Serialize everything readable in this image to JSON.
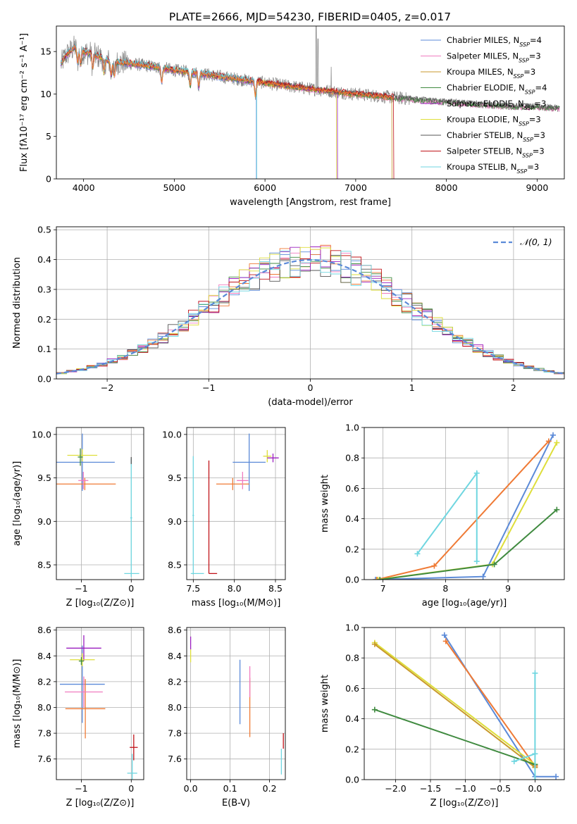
{
  "figure": {
    "title": "PLATE=2666, MJD=54230, FIBERID=0405, z=0.017"
  },
  "colors": {
    "chabrier_miles": "#5b8ad8",
    "salpeter_miles": "#f07cc0",
    "kroupa_miles": "#c99a2c",
    "chabrier_elodie": "#3f8a3f",
    "salpeter_elodie": "#9b1fbf",
    "kroupa_elodie": "#dede3a",
    "chabrier_stelib": "#555555",
    "salpeter_stelib": "#c0141a",
    "kroupa_stelib": "#6fd6e0",
    "orange": "#ef7a35",
    "gaussian": "#5b8ad8",
    "grid": "#b0b0b0"
  },
  "chart_data": [
    {
      "id": "spectrum",
      "type": "line",
      "xlabel": "wavelength [Angstrom, rest frame]",
      "ylabel": "Flux [fλ10⁻¹⁷ erg cm⁻² s⁻¹ A⁻¹]",
      "xlim": [
        3700,
        9300
      ],
      "ylim": [
        0,
        18
      ],
      "xticks": [
        "4000",
        "5000",
        "6000",
        "7000",
        "8000",
        "9000"
      ],
      "yticks": [
        "0",
        "5",
        "10",
        "15"
      ],
      "grid": false,
      "legend_position": "top-right",
      "legend": [
        {
          "name": "Chabrier MILES, N",
          "sub": "SSP",
          "tail": "=4",
          "color_key": "chabrier_miles"
        },
        {
          "name": "Salpeter MILES, N",
          "sub": "SSP",
          "tail": "=3",
          "color_key": "salpeter_miles"
        },
        {
          "name": "Kroupa MILES, N",
          "sub": "SSP",
          "tail": "=3",
          "color_key": "kroupa_miles"
        },
        {
          "name": "Chabrier ELODIE, N",
          "sub": "SSP",
          "tail": "=4",
          "color_key": "chabrier_elodie"
        },
        {
          "name": "Salpeter ELODIE, N",
          "sub": "SSP",
          "tail": "=3",
          "color_key": "salpeter_elodie"
        },
        {
          "name": "Kroupa ELODIE, N",
          "sub": "SSP",
          "tail": "=3",
          "color_key": "kroupa_elodie"
        },
        {
          "name": "Chabrier STELIB, N",
          "sub": "SSP",
          "tail": "=3",
          "color_key": "chabrier_stelib"
        },
        {
          "name": "Salpeter STELIB, N",
          "sub": "SSP",
          "tail": "=3",
          "color_key": "salpeter_stelib"
        },
        {
          "name": "Kroupa STELIB, N",
          "sub": "SSP",
          "tail": "=3",
          "color_key": "kroupa_stelib"
        }
      ],
      "continuum": [
        [
          3750,
          13.5
        ],
        [
          3800,
          14.5
        ],
        [
          3900,
          15.5
        ],
        [
          4000,
          15.0
        ],
        [
          4100,
          14.7
        ],
        [
          4300,
          13.8
        ],
        [
          4500,
          13.6
        ],
        [
          4800,
          13.2
        ],
        [
          5000,
          12.8
        ],
        [
          5300,
          12.4
        ],
        [
          5600,
          11.9
        ],
        [
          6000,
          11.3
        ],
        [
          6500,
          10.6
        ],
        [
          7000,
          10.0
        ],
        [
          7400,
          9.6
        ],
        [
          7800,
          9.2
        ],
        [
          8200,
          8.9
        ],
        [
          8600,
          8.6
        ],
        [
          8900,
          8.5
        ],
        [
          9100,
          8.4
        ],
        [
          9300,
          8.3
        ]
      ]
    },
    {
      "id": "residuals",
      "type": "histogram",
      "xlabel": "(data-model)/error",
      "ylabel": "Normed distribution",
      "xlim": [
        -2.5,
        2.5
      ],
      "ylim": [
        0,
        0.51
      ],
      "xticks": [
        "−2",
        "−1",
        "0",
        "1",
        "2"
      ],
      "yticks": [
        "0.0",
        "0.1",
        "0.2",
        "0.3",
        "0.4",
        "0.5"
      ],
      "grid": true,
      "legend_position": "top-right",
      "legend": [
        {
          "name": "𝒩(0, 1)",
          "color_key": "gaussian"
        }
      ],
      "gaussian": {
        "mean": 0,
        "sigma": 1
      }
    },
    {
      "id": "age_vs_Z",
      "type": "scatter",
      "xlabel": "Z [log₁₀(Z/Z⊙)]",
      "ylabel": "age  [log₁₀(age/yr)]",
      "xlim": [
        -1.5,
        0.25
      ],
      "ylim": [
        8.33,
        10.08
      ],
      "xticks": [
        "−1",
        "0"
      ],
      "yticks": [
        "8.5",
        "9.0",
        "9.5",
        "10.0"
      ],
      "grid": true,
      "points": [
        {
          "x": -0.98,
          "y": 9.68,
          "xerr": 0.65,
          "yerr": 0.33,
          "color_key": "chabrier_miles"
        },
        {
          "x": -0.93,
          "y": 9.43,
          "xerr": 0.62,
          "yerr": 0.07,
          "color_key": "orange"
        },
        {
          "x": -0.96,
          "y": 9.47,
          "xerr": 0.1,
          "yerr": 0.1,
          "color_key": "salpeter_miles"
        },
        {
          "x": -0.98,
          "y": 9.76,
          "xerr": 0.3,
          "yerr": 0.07,
          "color_key": "kroupa_elodie"
        },
        {
          "x": -1.02,
          "y": 9.74,
          "xerr": 0.05,
          "yerr": 0.1,
          "color_key": "chabrier_elodie"
        },
        {
          "x": 0.0,
          "y": 9.04,
          "xerr": 0.02,
          "yerr": 0.68,
          "color_key": "kroupa_stelib"
        },
        {
          "x": 0.01,
          "y": 8.4,
          "xerr": 0.15,
          "yerr": 0.0,
          "color_key": "kroupa_stelib"
        },
        {
          "x": 0.0,
          "y": 9.7,
          "xerr": 0.0,
          "yerr": 0.04,
          "color_key": "chabrier_stelib"
        }
      ]
    },
    {
      "id": "age_vs_mass",
      "type": "scatter",
      "xlabel": "mass [log₁₀(M/M⊙)]",
      "ylabel": "",
      "xlim": [
        7.42,
        8.62
      ],
      "ylim": [
        8.33,
        10.08
      ],
      "xticks": [
        "7.5",
        "8.0",
        "8.5"
      ],
      "yticks": [
        "8.5",
        "9.0",
        "9.5",
        "10.0"
      ],
      "grid": true,
      "points": [
        {
          "x": 8.18,
          "y": 9.68,
          "xerr": 0.2,
          "yerr": 0.33,
          "color_key": "chabrier_miles"
        },
        {
          "x": 7.98,
          "y": 9.43,
          "xerr": 0.2,
          "yerr": 0.07,
          "color_key": "orange"
        },
        {
          "x": 8.1,
          "y": 9.47,
          "xerr": 0.07,
          "yerr": 0.1,
          "color_key": "salpeter_miles"
        },
        {
          "x": 8.4,
          "y": 9.75,
          "xerr": 0.05,
          "yerr": 0.07,
          "color_key": "kroupa_elodie"
        },
        {
          "x": 8.47,
          "y": 9.73,
          "xerr": 0.07,
          "yerr": 0.05,
          "color_key": "salpeter_elodie"
        },
        {
          "x": 7.5,
          "y": 9.07,
          "xerr": 0.01,
          "yerr": 0.68,
          "color_key": "kroupa_stelib"
        },
        {
          "x": 7.55,
          "y": 8.4,
          "xerr": 0.08,
          "yerr": 0.0,
          "color_key": "kroupa_stelib"
        },
        {
          "x": 7.69,
          "y": 9.05,
          "xerr": 0.0,
          "yerr": 0.65,
          "color_key": "salpeter_stelib"
        },
        {
          "x": 7.74,
          "y": 8.4,
          "xerr": 0.05,
          "yerr": 0.0,
          "color_key": "salpeter_stelib"
        }
      ]
    },
    {
      "id": "mass_weight_vs_age",
      "type": "line",
      "xlabel": "age  [log₁₀(age/yr)]",
      "ylabel": "mass weight",
      "xlim": [
        6.7,
        9.9
      ],
      "ylim": [
        0,
        1.0
      ],
      "xticks": [
        "7",
        "8",
        "9"
      ],
      "yticks": [
        "0.0",
        "0.2",
        "0.4",
        "0.6",
        "0.8",
        "1.0"
      ],
      "grid": true,
      "series": [
        {
          "color_key": "chabrier_miles",
          "x": [
            6.88,
            8.6,
            9.72
          ],
          "y": [
            0.0,
            0.02,
            0.95
          ]
        },
        {
          "color_key": "orange",
          "x": [
            6.9,
            7.82,
            9.65
          ],
          "y": [
            0.0,
            0.09,
            0.91
          ]
        },
        {
          "color_key": "kroupa_elodie",
          "x": [
            6.92,
            8.75,
            9.78
          ],
          "y": [
            0.0,
            0.1,
            0.9
          ]
        },
        {
          "color_key": "chabrier_elodie",
          "x": [
            6.95,
            8.78,
            9.78
          ],
          "y": [
            0.0,
            0.1,
            0.46
          ]
        },
        {
          "color_key": "kroupa_stelib",
          "x": [
            7.55,
            8.5,
            8.5
          ],
          "y": [
            0.17,
            0.7,
            0.12
          ]
        }
      ]
    },
    {
      "id": "mass_vs_Z",
      "type": "scatter",
      "xlabel": "Z [log₁₀(Z/Z⊙)]",
      "ylabel": "mass [log₁₀(M/M⊙)]",
      "xlim": [
        -1.5,
        0.25
      ],
      "ylim": [
        7.44,
        8.62
      ],
      "xticks": [
        "−1",
        "0"
      ],
      "yticks": [
        "7.6",
        "7.8",
        "8.0",
        "8.2",
        "8.4",
        "8.6"
      ],
      "grid": true,
      "points": [
        {
          "x": -0.98,
          "y": 8.18,
          "xerr": 0.45,
          "yerr": 0.3,
          "color_key": "chabrier_miles"
        },
        {
          "x": -0.92,
          "y": 7.99,
          "xerr": 0.4,
          "yerr": 0.23,
          "color_key": "orange"
        },
        {
          "x": -0.95,
          "y": 8.12,
          "xerr": 0.38,
          "yerr": 0.12,
          "color_key": "salpeter_miles"
        },
        {
          "x": -0.95,
          "y": 8.46,
          "xerr": 0.35,
          "yerr": 0.1,
          "color_key": "salpeter_elodie"
        },
        {
          "x": -0.98,
          "y": 8.37,
          "xerr": 0.25,
          "yerr": 0.05,
          "color_key": "kroupa_elodie"
        },
        {
          "x": -1.0,
          "y": 8.36,
          "xerr": 0.05,
          "yerr": 0.03,
          "color_key": "chabrier_elodie"
        },
        {
          "x": 0.05,
          "y": 7.69,
          "xerr": 0.08,
          "yerr": 0.1,
          "color_key": "salpeter_stelib"
        },
        {
          "x": 0.02,
          "y": 7.49,
          "xerr": 0.1,
          "yerr": 0.15,
          "color_key": "kroupa_stelib"
        }
      ]
    },
    {
      "id": "mass_vs_ebv",
      "type": "scatter",
      "xlabel": "E(B-V)",
      "ylabel": "",
      "xlim": [
        -0.01,
        0.24
      ],
      "ylim": [
        7.44,
        8.62
      ],
      "xticks": [
        "0.0",
        "0.1",
        "0.2"
      ],
      "yticks": [
        "7.6",
        "7.8",
        "8.0",
        "8.2",
        "8.4",
        "8.6"
      ],
      "grid": true,
      "points": [
        {
          "x": 0.0,
          "y": 8.5,
          "xerr": 0.0,
          "yerr": 0.05,
          "color_key": "salpeter_elodie"
        },
        {
          "x": 0.0,
          "y": 8.4,
          "xerr": 0.0,
          "yerr": 0.05,
          "color_key": "kroupa_elodie"
        },
        {
          "x": 0.125,
          "y": 8.12,
          "xerr": 0.0,
          "yerr": 0.25,
          "color_key": "chabrier_miles"
        },
        {
          "x": 0.15,
          "y": 8.0,
          "xerr": 0.0,
          "yerr": 0.23,
          "color_key": "orange"
        },
        {
          "x": 0.15,
          "y": 8.2,
          "xerr": 0.0,
          "yerr": 0.12,
          "color_key": "salpeter_miles"
        },
        {
          "x": 0.23,
          "y": 7.58,
          "xerr": 0.0,
          "yerr": 0.1,
          "color_key": "kroupa_stelib"
        },
        {
          "x": 0.235,
          "y": 7.74,
          "xerr": 0.0,
          "yerr": 0.06,
          "color_key": "salpeter_stelib"
        }
      ]
    },
    {
      "id": "mass_weight_vs_Z",
      "type": "line",
      "xlabel": "Z [log₁₀(Z/Z⊙)]",
      "ylabel": "mass weight",
      "xlim": [
        -2.45,
        0.42
      ],
      "ylim": [
        0,
        1.0
      ],
      "xticks": [
        "−2.0",
        "−1.5",
        "−1.0",
        "−0.5",
        "0.0"
      ],
      "yticks": [
        "0.0",
        "0.2",
        "0.4",
        "0.6",
        "0.8",
        "1.0"
      ],
      "grid": true,
      "series": [
        {
          "color_key": "chabrier_miles",
          "x": [
            -1.3,
            0.0,
            0.3
          ],
          "y": [
            0.95,
            0.02,
            0.02
          ]
        },
        {
          "color_key": "orange",
          "x": [
            -1.28,
            0.0,
            0.0
          ],
          "y": [
            0.91,
            0.09,
            0.09
          ]
        },
        {
          "color_key": "kroupa_elodie",
          "x": [
            -2.3,
            0.0
          ],
          "y": [
            0.9,
            0.1
          ]
        },
        {
          "color_key": "kroupa_miles",
          "x": [
            -2.3,
            0.0
          ],
          "y": [
            0.89,
            0.08
          ]
        },
        {
          "color_key": "chabrier_elodie",
          "x": [
            -2.3,
            0.0
          ],
          "y": [
            0.46,
            0.1
          ]
        },
        {
          "color_key": "kroupa_stelib",
          "x": [
            -0.3,
            0.0,
            0.0,
            0.0
          ],
          "y": [
            0.12,
            0.17,
            0.7,
            0.0
          ]
        }
      ]
    }
  ]
}
